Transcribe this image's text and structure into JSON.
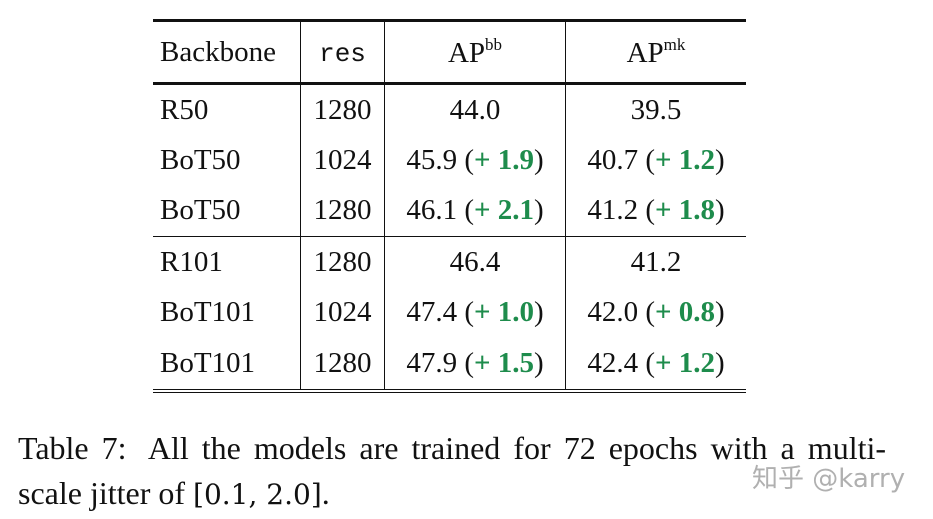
{
  "table": {
    "header": [
      {
        "text": "Backbone"
      },
      {
        "text": "res"
      },
      {
        "text": "AP",
        "sup": "bb"
      },
      {
        "text": "AP",
        "sup": "mk"
      }
    ],
    "groups": [
      [
        [
          "R50",
          "1280",
          [
            "44.0"
          ],
          [
            "39.5"
          ]
        ],
        [
          "BoT50",
          "1024",
          [
            "45.9 (",
            "+ 1.9",
            ")"
          ],
          [
            "40.7 (",
            "+ 1.2",
            ")"
          ]
        ],
        [
          "BoT50",
          "1280",
          [
            "46.1 (",
            "+ 2.1",
            ")"
          ],
          [
            "41.2 (",
            "+ 1.8",
            ")"
          ]
        ]
      ],
      [
        [
          "R101",
          "1280",
          [
            "46.4"
          ],
          [
            "41.2"
          ]
        ],
        [
          "BoT101",
          "1024",
          [
            "47.4 (",
            "+ 1.0",
            ")"
          ],
          [
            "42.0 (",
            "+ 0.8",
            ")"
          ]
        ],
        [
          "BoT101",
          "1280",
          [
            "47.9 (",
            "+ 1.5",
            ")"
          ],
          [
            "42.4 (",
            "+ 1.2",
            ")"
          ]
        ]
      ]
    ]
  },
  "caption": {
    "label": "Table 7:",
    "text": "All the models are trained for 72 epochs with a multi-scale jitter of",
    "math": "[0.1, 2.0]",
    "end": "."
  },
  "watermark": "知乎 @karry"
}
